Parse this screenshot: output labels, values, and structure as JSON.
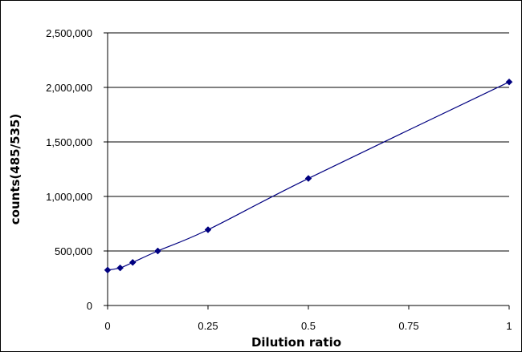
{
  "chart_data": {
    "type": "scatter",
    "title": "",
    "xlabel": "Dilution ratio",
    "ylabel": "counts(485/535)",
    "xlim": [
      0,
      1
    ],
    "ylim": [
      0,
      2500000
    ],
    "x_ticks": [
      0,
      0.25,
      0.5,
      0.75,
      1
    ],
    "x_tick_labels": [
      "0",
      "0.25",
      "0.5",
      "0.75",
      "1"
    ],
    "y_ticks": [
      0,
      500000,
      1000000,
      1500000,
      2000000,
      2500000
    ],
    "y_tick_labels": [
      "0",
      "500,000",
      "1,000,000",
      "1,500,000",
      "2,000,000",
      "2,500,000"
    ],
    "grid": "horizontal",
    "legend": "none",
    "series": [
      {
        "x": [
          0,
          0.03125,
          0.0625,
          0.125,
          0.25,
          0.5,
          1
        ],
        "y": [
          325000,
          345000,
          395000,
          500000,
          695000,
          1165000,
          2050000
        ],
        "color": "#000080",
        "line": "smooth",
        "marker": "diamond"
      }
    ]
  }
}
